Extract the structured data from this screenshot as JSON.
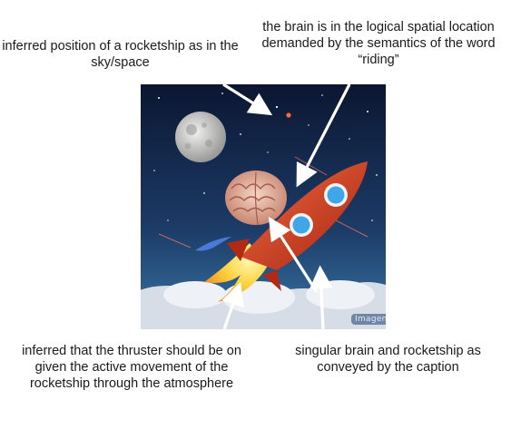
{
  "annotations": {
    "top_left": "inferred position of a rocketship as in the sky/space",
    "top_right": "the brain is in the logical spatial location demanded by the semantics of the word “riding”",
    "bottom_left": "inferred that the thruster should be on given the active movement of the rocketship through the atmosphere",
    "bottom_right": "singular brain and rocketship as conveyed by the caption"
  },
  "image": {
    "watermark": "Imagen",
    "depicts": [
      "moon",
      "stars",
      "brain",
      "rocketship",
      "thruster-flame",
      "clouds"
    ]
  },
  "colors": {
    "sky_top": "#0c1a3a",
    "sky_bottom": "#2a5f8f",
    "rocket": "#d8432a",
    "flame": "#ffd23f",
    "brain": "#e7b8a6",
    "arrow": "#ffffff"
  }
}
